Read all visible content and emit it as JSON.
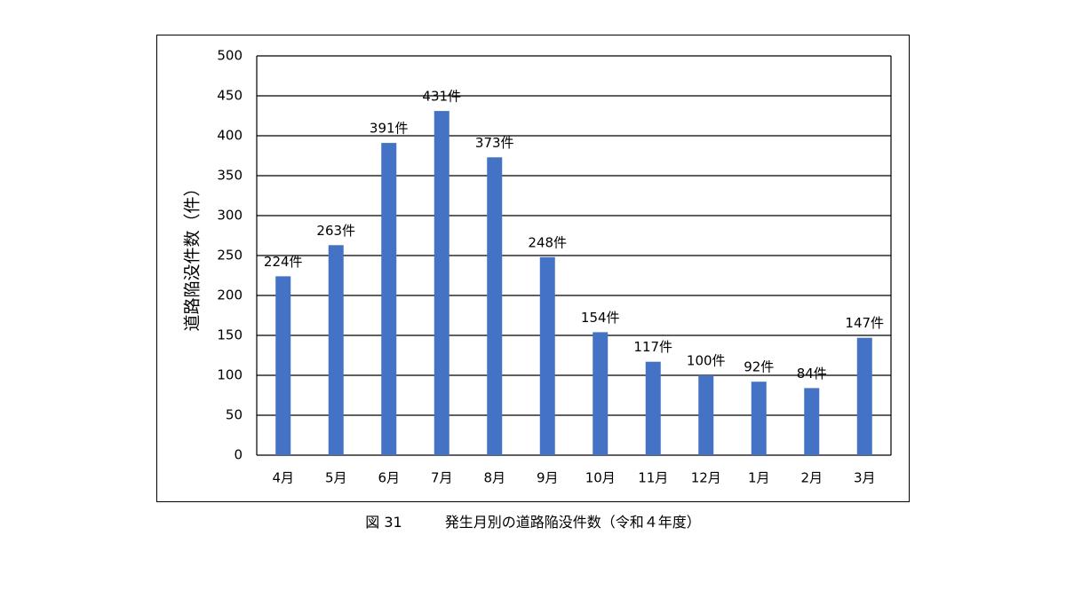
{
  "chart_data": {
    "type": "bar",
    "categories": [
      "4月",
      "5月",
      "6月",
      "7月",
      "8月",
      "9月",
      "10月",
      "11月",
      "12月",
      "1月",
      "2月",
      "3月"
    ],
    "values": [
      224,
      263,
      391,
      431,
      373,
      248,
      154,
      117,
      100,
      92,
      84,
      147
    ],
    "data_labels": [
      "224件",
      "263件",
      "391件",
      "431件",
      "373件",
      "248件",
      "154件",
      "117件",
      "100件",
      "92件",
      "84件",
      "147件"
    ],
    "ylabel": "道路陥没件数（件）",
    "ylim": [
      0,
      500
    ],
    "yticks": [
      0,
      50,
      100,
      150,
      200,
      250,
      300,
      350,
      400,
      450,
      500
    ],
    "grid": true,
    "bar_color": "#4472C4"
  },
  "caption": {
    "figure_number": "図 31",
    "title": "発生月別の道路陥没件数（令和４年度）"
  }
}
